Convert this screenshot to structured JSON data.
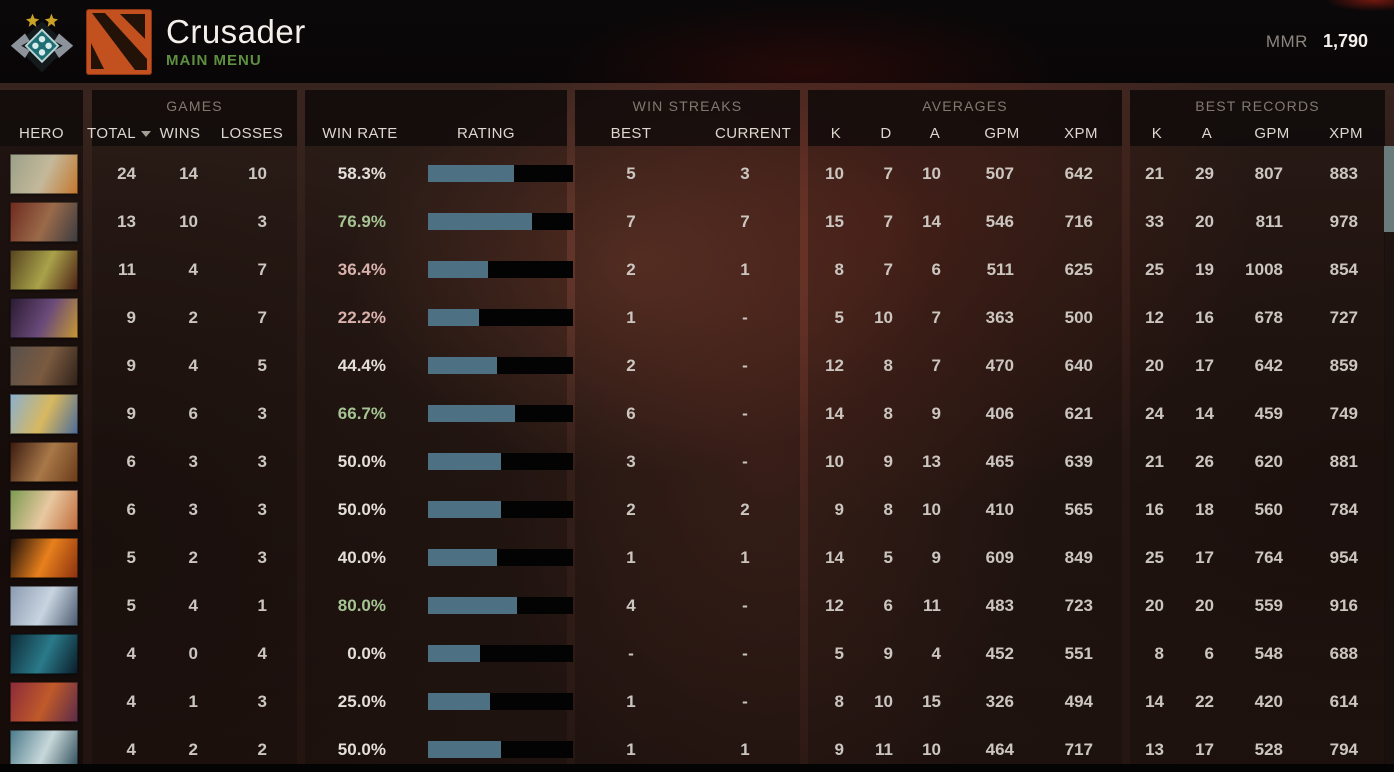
{
  "topbar": {
    "rank_title": "Crusader",
    "subtitle": "MAIN MENU",
    "mmr_label": "MMR",
    "mmr_value": "1,790"
  },
  "colors": {
    "accent_green": "#a6c493",
    "accent_red": "#dab2ac",
    "rating_bar_fill": "#4d7183",
    "rating_bar_empty": "#030303",
    "main_menu_green": "#5d9040",
    "scroll_thumb": "#697b7a"
  },
  "table": {
    "groups": {
      "games": "GAMES",
      "win_streaks": "WIN STREAKS",
      "averages": "AVERAGES",
      "best_records": "BEST RECORDS"
    },
    "columns": {
      "hero": "HERO",
      "total": "TOTAL",
      "wins": "WINS",
      "losses": "LOSSES",
      "win_rate": "WIN RATE",
      "rating": "RATING",
      "best": "BEST",
      "current": "CURRENT",
      "k": "K",
      "d": "D",
      "a": "A",
      "gpm": "GPM",
      "xpm": "XPM"
    },
    "rows": [
      {
        "total": 24,
        "wins": 14,
        "losses": 10,
        "win_rate": "58.3%",
        "win_rate_color": "neu",
        "rating_fill_pct": 59.5,
        "streak_best": "5",
        "streak_current": "3",
        "avg_k": 10,
        "avg_d": 7,
        "avg_a": 10,
        "avg_gpm": 507,
        "avg_xpm": 642,
        "best_k": 21,
        "best_a": 29,
        "best_gpm": 807,
        "best_xpm": 883,
        "portrait": [
          "#9aa188",
          "#c4b89a",
          "#c4762c"
        ]
      },
      {
        "total": 13,
        "wins": 10,
        "losses": 3,
        "win_rate": "76.9%",
        "win_rate_color": "pos",
        "rating_fill_pct": 71.5,
        "streak_best": "7",
        "streak_current": "7",
        "avg_k": 15,
        "avg_d": 7,
        "avg_a": 14,
        "avg_gpm": 546,
        "avg_xpm": 716,
        "best_k": 33,
        "best_a": 20,
        "best_gpm": 811,
        "best_xpm": 978,
        "portrait": [
          "#6e2a1e",
          "#9a6a4a",
          "#3a3a40"
        ]
      },
      {
        "total": 11,
        "wins": 4,
        "losses": 7,
        "win_rate": "36.4%",
        "win_rate_color": "neg",
        "rating_fill_pct": 41.5,
        "streak_best": "2",
        "streak_current": "1",
        "avg_k": 8,
        "avg_d": 7,
        "avg_a": 6,
        "avg_gpm": 511,
        "avg_xpm": 625,
        "best_k": 25,
        "best_a": 19,
        "best_gpm": 1008,
        "best_xpm": 854,
        "portrait": [
          "#55431f",
          "#aaa24a",
          "#4a2014"
        ]
      },
      {
        "total": 9,
        "wins": 2,
        "losses": 7,
        "win_rate": "22.2%",
        "win_rate_color": "neg",
        "rating_fill_pct": 35,
        "streak_best": "1",
        "streak_current": "-",
        "avg_k": 5,
        "avg_d": 10,
        "avg_a": 7,
        "avg_gpm": 363,
        "avg_xpm": 500,
        "best_k": 12,
        "best_a": 16,
        "best_gpm": 678,
        "best_xpm": 727,
        "portrait": [
          "#2a1a30",
          "#6a4a7a",
          "#c89a30"
        ]
      },
      {
        "total": 9,
        "wins": 4,
        "losses": 5,
        "win_rate": "44.4%",
        "win_rate_color": "neu",
        "rating_fill_pct": 47.5,
        "streak_best": "2",
        "streak_current": "-",
        "avg_k": 12,
        "avg_d": 8,
        "avg_a": 7,
        "avg_gpm": 470,
        "avg_xpm": 640,
        "best_k": 20,
        "best_a": 17,
        "best_gpm": 642,
        "best_xpm": 859,
        "portrait": [
          "#58504c",
          "#7a5a40",
          "#2e2018"
        ]
      },
      {
        "total": 9,
        "wins": 6,
        "losses": 3,
        "win_rate": "66.7%",
        "win_rate_color": "pos",
        "rating_fill_pct": 60,
        "streak_best": "6",
        "streak_current": "-",
        "avg_k": 14,
        "avg_d": 8,
        "avg_a": 9,
        "avg_gpm": 406,
        "avg_xpm": 621,
        "best_k": 24,
        "best_a": 14,
        "best_gpm": 459,
        "best_xpm": 749,
        "portrait": [
          "#8ab0d0",
          "#d8b860",
          "#4a6a9a"
        ]
      },
      {
        "total": 6,
        "wins": 3,
        "losses": 3,
        "win_rate": "50.0%",
        "win_rate_color": "neu",
        "rating_fill_pct": 50,
        "streak_best": "3",
        "streak_current": "-",
        "avg_k": 10,
        "avg_d": 9,
        "avg_a": 13,
        "avg_gpm": 465,
        "avg_xpm": 639,
        "best_k": 21,
        "best_a": 26,
        "best_gpm": 620,
        "best_xpm": 881,
        "portrait": [
          "#3a1a10",
          "#a87848",
          "#6a3a1a"
        ]
      },
      {
        "total": 6,
        "wins": 3,
        "losses": 3,
        "win_rate": "50.0%",
        "win_rate_color": "neu",
        "rating_fill_pct": 50,
        "streak_best": "2",
        "streak_current": "2",
        "avg_k": 9,
        "avg_d": 8,
        "avg_a": 10,
        "avg_gpm": 410,
        "avg_xpm": 565,
        "best_k": 16,
        "best_a": 18,
        "best_gpm": 560,
        "best_xpm": 784,
        "portrait": [
          "#7a9a50",
          "#e8c8a0",
          "#c06a3a"
        ]
      },
      {
        "total": 5,
        "wins": 2,
        "losses": 3,
        "win_rate": "40.0%",
        "win_rate_color": "neu",
        "rating_fill_pct": 47.5,
        "streak_best": "1",
        "streak_current": "1",
        "avg_k": 14,
        "avg_d": 5,
        "avg_a": 9,
        "avg_gpm": 609,
        "avg_xpm": 849,
        "best_k": 25,
        "best_a": 17,
        "best_gpm": 764,
        "best_xpm": 954,
        "portrait": [
          "#1a0e0a",
          "#e8801c",
          "#8a3010"
        ]
      },
      {
        "total": 5,
        "wins": 4,
        "losses": 1,
        "win_rate": "80.0%",
        "win_rate_color": "pos",
        "rating_fill_pct": 61.5,
        "streak_best": "4",
        "streak_current": "-",
        "avg_k": 12,
        "avg_d": 6,
        "avg_a": 11,
        "avg_gpm": 483,
        "avg_xpm": 723,
        "best_k": 20,
        "best_a": 20,
        "best_gpm": 559,
        "best_xpm": 916,
        "portrait": [
          "#8a9ab0",
          "#c8d4e0",
          "#4a5a6e"
        ]
      },
      {
        "total": 4,
        "wins": 0,
        "losses": 4,
        "win_rate": "0.0%",
        "win_rate_color": "neu",
        "rating_fill_pct": 36,
        "streak_best": "-",
        "streak_current": "-",
        "avg_k": 5,
        "avg_d": 9,
        "avg_a": 4,
        "avg_gpm": 452,
        "avg_xpm": 551,
        "best_k": 8,
        "best_a": 6,
        "best_gpm": 548,
        "best_xpm": 688,
        "portrait": [
          "#0e2a36",
          "#2a7a8a",
          "#0a1a26"
        ]
      },
      {
        "total": 4,
        "wins": 1,
        "losses": 3,
        "win_rate": "25.0%",
        "win_rate_color": "neu",
        "rating_fill_pct": 42.5,
        "streak_best": "1",
        "streak_current": "-",
        "avg_k": 8,
        "avg_d": 10,
        "avg_a": 15,
        "avg_gpm": 326,
        "avg_xpm": 494,
        "best_k": 14,
        "best_a": 22,
        "best_gpm": 420,
        "best_xpm": 614,
        "portrait": [
          "#8a2a3a",
          "#c05a2a",
          "#5a2a4a"
        ]
      },
      {
        "total": 4,
        "wins": 2,
        "losses": 2,
        "win_rate": "50.0%",
        "win_rate_color": "neu",
        "rating_fill_pct": 50,
        "streak_best": "1",
        "streak_current": "1",
        "avg_k": 9,
        "avg_d": 11,
        "avg_a": 10,
        "avg_gpm": 464,
        "avg_xpm": 717,
        "best_k": 13,
        "best_a": 17,
        "best_gpm": 528,
        "best_xpm": 794,
        "portrait": [
          "#4a7a8a",
          "#c8d8da",
          "#2a4a56"
        ]
      }
    ]
  }
}
